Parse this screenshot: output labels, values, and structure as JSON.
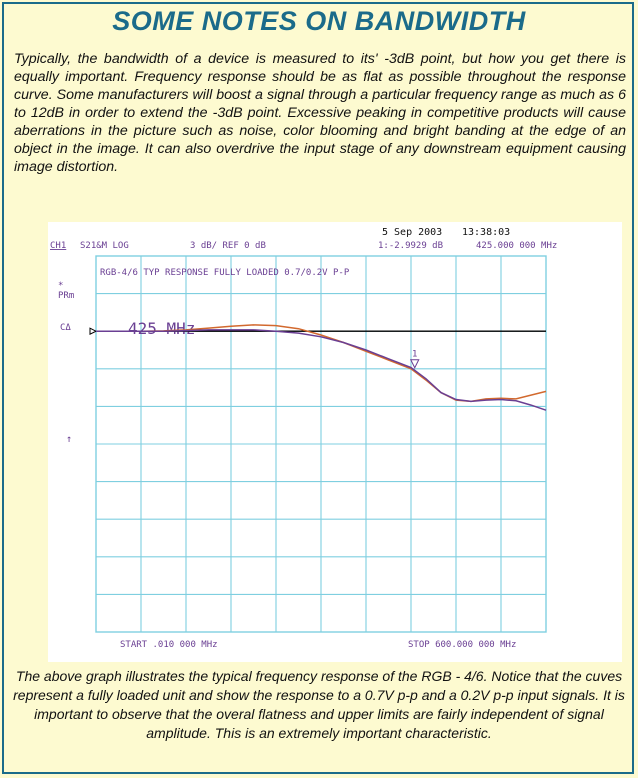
{
  "title": "SOME NOTES ON BANDWIDTH",
  "intro": "Typically, the bandwidth of a device is measured to its' -3dB point, but how you get there is equally important. Frequency response should be as flat as possible throughout the response curve. Some manufacturers will boost a signal through a particular frequency range as much as 6 to 12dB in order to extend the -3dB point. Excessive peaking in competitive products will cause aberrations in the picture such as noise, color blooming and bright banding at the edge of an object in the image. It can also overdrive the input stage of any downstream equipment causing image distortion.",
  "caption": "The above graph illustrates the typical frequency response of the RGB - 4/6. Notice that the cuves represent a fully loaded unit and show the response to a 0.7V p-p and a 0.2V p-p input signals. It is important to observe that the overal flatness and upper limits are fairly independent of signal amplitude. This is an extremely important characteristic.",
  "colors": {
    "border": "#1b6b8a",
    "title": "#1b6b8a",
    "background": "#fdfad0",
    "grid": "#7fcfe0",
    "trace_orange": "#d2692e",
    "trace_purple": "#6a3f93",
    "reference_line": "#000000"
  },
  "chart_data": {
    "type": "line",
    "instrument": {
      "date": "5 Sep 2003",
      "time": "13:38:03",
      "channel": "CH1",
      "measurement": "S21&M LOG",
      "scale": "3 dB/ REF 0 dB",
      "marker_readout": "1:-2.9929 dB",
      "marker_frequency": "425.000 000 MHz",
      "start": "START .010 000 MHz",
      "stop": "STOP 600.000 000 MHz",
      "annotation_title": "RGB-4/6 TYP RESPONSE FULLY LOADED 0.7/0.2V P-P",
      "left_labels": [
        "*",
        "PRm",
        "CΔ",
        "↑"
      ],
      "big_label": "425 MHz",
      "marker_label": "1"
    },
    "x_unit": "MHz",
    "y_unit": "dB",
    "xlim": [
      0.01,
      600
    ],
    "ylim": [
      -24,
      6
    ],
    "grid": true,
    "grid_divisions": {
      "x": 10,
      "y": 10
    },
    "reference_level": 0,
    "marker": {
      "x": 425,
      "y": -2.9929
    },
    "series": [
      {
        "x": [
          0,
          30,
          60,
          90,
          120,
          150,
          180,
          210,
          240,
          270,
          300,
          330,
          360,
          390,
          420,
          440,
          460,
          480,
          500,
          520,
          540,
          560,
          580,
          600
        ],
        "y": [
          0.0,
          0.0,
          0.0,
          0.02,
          0.1,
          0.25,
          0.4,
          0.5,
          0.45,
          0.2,
          -0.3,
          -0.9,
          -1.6,
          -2.3,
          -3.0,
          -3.9,
          -4.9,
          -5.5,
          -5.6,
          -5.4,
          -5.35,
          -5.4,
          -5.1,
          -4.8
        ]
      },
      {
        "x": [
          0,
          30,
          60,
          90,
          120,
          150,
          180,
          210,
          240,
          270,
          300,
          330,
          360,
          390,
          420,
          440,
          460,
          480,
          500,
          520,
          540,
          560,
          580,
          600
        ],
        "y": [
          0.0,
          0.0,
          0.0,
          0.0,
          0.05,
          0.1,
          0.1,
          0.1,
          0.0,
          -0.15,
          -0.45,
          -0.9,
          -1.5,
          -2.2,
          -2.9,
          -3.8,
          -4.9,
          -5.45,
          -5.6,
          -5.5,
          -5.45,
          -5.55,
          -5.9,
          -6.3
        ]
      }
    ]
  }
}
